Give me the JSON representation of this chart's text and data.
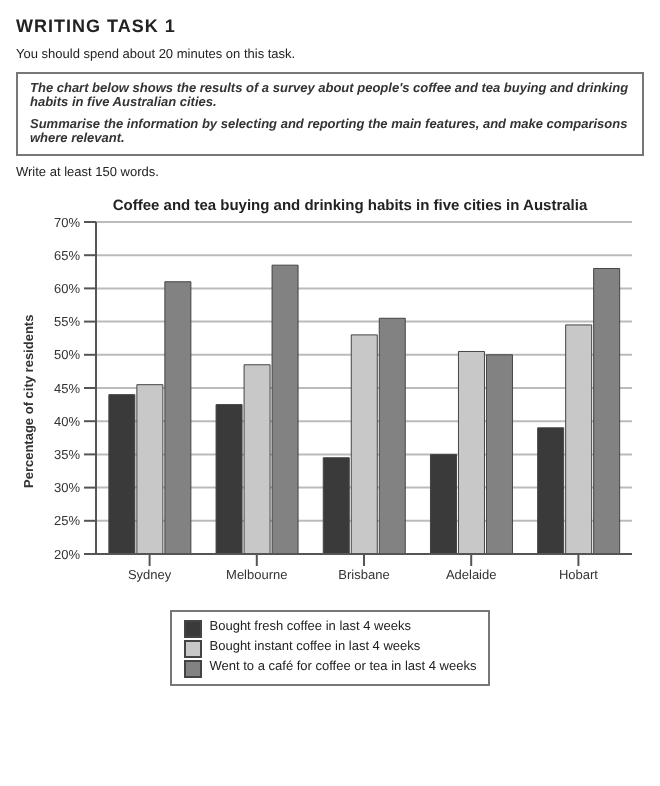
{
  "chart_data": {
    "type": "bar",
    "title": "Coffee and tea buying and drinking habits in five cities in Australia",
    "ylabel": "Percentage of city residents",
    "annotations": [
      "WRITING TASK 1",
      "You should spend about 20 minutes on this task.",
      "The chart below shows the results of a survey about people's coffee and tea buying and drinking habits in five Australian cities.",
      "Summarise the information by selecting and reporting the main features, and make comparisons where relevant.",
      "Write at least 150 words."
    ],
    "categories": [
      "Sydney",
      "Melbourne",
      "Brisbane",
      "Adelaide",
      "Hobart"
    ],
    "series": [
      {
        "name": "Bought fresh coffee in last 4 weeks",
        "color": "#3a3a3a",
        "values": [
          44,
          42.5,
          34.5,
          35,
          39
        ]
      },
      {
        "name": "Bought instant coffee in last 4 weeks",
        "color": "#c8c8c8",
        "values": [
          45.5,
          48.5,
          53,
          50.5,
          54.5
        ]
      },
      {
        "name": "Went to a café for coffee or tea in last 4 weeks",
        "color": "#828282",
        "values": [
          61,
          63.5,
          55.5,
          50,
          63
        ]
      }
    ],
    "ylim": [
      20,
      70
    ],
    "yticks": [
      {
        "value": 20,
        "label": "20%"
      },
      {
        "value": 25,
        "label": "25%"
      },
      {
        "value": 30,
        "label": "30%"
      },
      {
        "value": 35,
        "label": "35%"
      },
      {
        "value": 40,
        "label": "40%"
      },
      {
        "value": 45,
        "label": "45%"
      },
      {
        "value": 50,
        "label": "50%"
      },
      {
        "value": 55,
        "label": "55%"
      },
      {
        "value": 60,
        "label": "60%"
      },
      {
        "value": 65,
        "label": "65%"
      },
      {
        "value": 70,
        "label": "70%"
      }
    ],
    "grid": "y",
    "legend": "bottom"
  }
}
